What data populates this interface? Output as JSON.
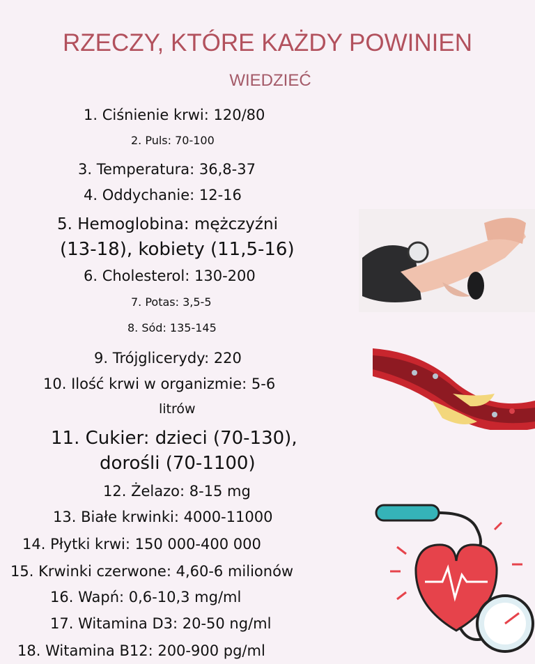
{
  "title": "RZECZY, KTÓRE KAŻDY POWINIEN",
  "subtitle": "WIEDZIEĆ",
  "colors": {
    "title": "#b2515d",
    "background": "#f8f1f6",
    "text": "#111111"
  },
  "items": [
    "1. Ciśnienie krwi: 120/80",
    "2. Puls: 70-100",
    "3. Temperatura: 36,8-37",
    "4. Oddychanie: 12-16",
    "5. Hemoglobina: mężczyźni",
    "(13-18), kobiety (11,5-16)",
    "6. Cholesterol: 130-200",
    "7. Potas: 3,5-5",
    "8. Sód: 135-145",
    "9. Trójglicerydy: 220",
    "10. Ilość krwi w organizmie: 5-6",
    "litrów",
    "11. Cukier: dzieci (70-130),",
    "dorośli (70-1100)",
    "12. Żelazo: 8-15 mg",
    "13. Białe krwinki: 4000-11000",
    "14. Płytki krwi: 150 000-400 000",
    "15. Krwinki czerwone: 4,60-6 milionów",
    "16. Wapń: 0,6-10,3 mg/ml",
    "17. Witamina D3: 20-50 ng/ml",
    "18. Witamina B12: 200-900 pg/ml"
  ],
  "illustrations": [
    "blood-pressure-measurement-photo",
    "artery-plaque-illustration",
    "heart-blood-pressure-gauge-icon"
  ]
}
